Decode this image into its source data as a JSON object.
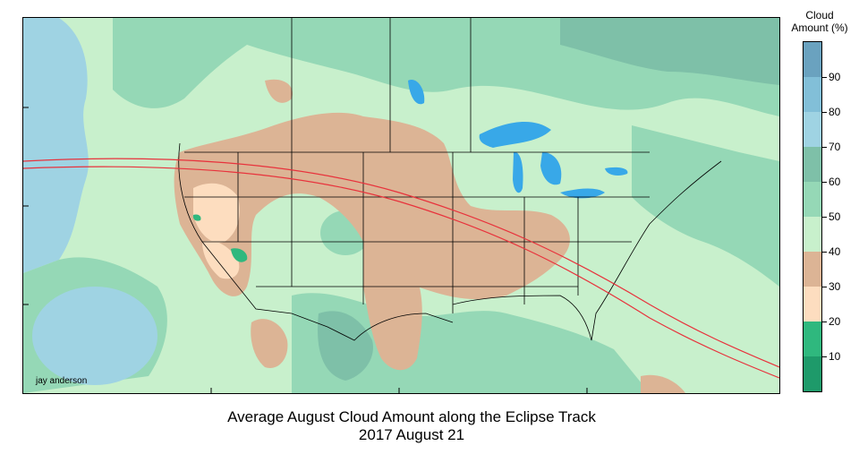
{
  "title": "Average August Cloud Amount along the Eclipse Track",
  "subtitle": "2017 August 21",
  "credit": "jay anderson",
  "legend": {
    "title_line1": "Cloud",
    "title_line2": "Amount (%)",
    "classes": [
      {
        "range": [
          0,
          10
        ],
        "color": "#1e9a6a"
      },
      {
        "range": [
          10,
          20
        ],
        "color": "#2fb87e"
      },
      {
        "range": [
          20,
          30
        ],
        "color": "#fdddbf"
      },
      {
        "range": [
          30,
          40
        ],
        "color": "#dcb495"
      },
      {
        "range": [
          40,
          50
        ],
        "color": "#c8f0cc"
      },
      {
        "range": [
          50,
          60
        ],
        "color": "#95d8b6"
      },
      {
        "range": [
          60,
          70
        ],
        "color": "#7ec0a8"
      },
      {
        "range": [
          70,
          80
        ],
        "color": "#9fd3e3"
      },
      {
        "range": [
          80,
          90
        ],
        "color": "#82bfd8"
      },
      {
        "range": [
          90,
          100
        ],
        "color": "#6aa2bf"
      }
    ],
    "tick_labels": [
      "10",
      "20",
      "30",
      "40",
      "50",
      "60",
      "70",
      "80",
      "90"
    ]
  },
  "colors": {
    "path": "#e8323c",
    "water": "#38a8e8",
    "border": "#000000"
  }
}
